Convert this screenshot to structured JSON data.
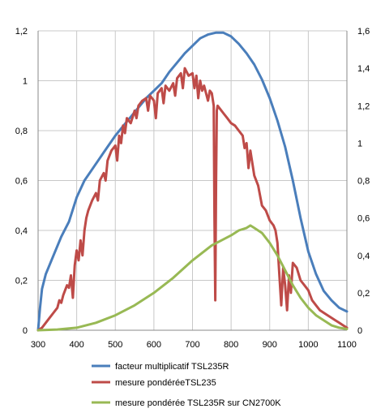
{
  "chart_data": {
    "type": "line",
    "grid": true,
    "legend_placement": "bottom",
    "x_axis": {
      "range": [
        300,
        1100
      ],
      "ticks": [
        300,
        400,
        500,
        600,
        700,
        800,
        900,
        1000,
        1100
      ],
      "tick_labels": [
        "300",
        "400",
        "500",
        "600",
        "700",
        "800",
        "900",
        "1000",
        "1100"
      ]
    },
    "y_axis_left": {
      "range": [
        0,
        1.2
      ],
      "ticks": [
        0,
        0.2,
        0.4,
        0.6,
        0.8,
        1,
        1.2
      ],
      "tick_labels": [
        "0",
        "0,2",
        "0,4",
        "0,6",
        "0,8",
        "1",
        "1,2"
      ]
    },
    "y_axis_right": {
      "range": [
        0,
        1.6
      ],
      "ticks": [
        0,
        0.2,
        0.4,
        0.6,
        0.8,
        1,
        1.2,
        1.4,
        1.6
      ],
      "tick_labels": [
        "0",
        "0,2",
        "0,4",
        "0,6",
        "0,8",
        "1",
        "1,2",
        "1,4",
        "1,6"
      ]
    },
    "series": [
      {
        "name": "facteur multiplicatif TSL235R",
        "color": "#4a7ebb",
        "axis": "right",
        "x": [
          300,
          305,
          310,
          320,
          340,
          360,
          380,
          400,
          420,
          440,
          460,
          480,
          500,
          520,
          540,
          560,
          580,
          600,
          620,
          640,
          660,
          680,
          700,
          720,
          740,
          760,
          780,
          800,
          820,
          840,
          860,
          880,
          900,
          920,
          940,
          960,
          980,
          1000,
          1020,
          1040,
          1060,
          1080,
          1100
        ],
        "y": [
          0,
          0.12,
          0.22,
          0.3,
          0.4,
          0.5,
          0.58,
          0.71,
          0.8,
          0.86,
          0.92,
          0.98,
          1.04,
          1.09,
          1.14,
          1.19,
          1.24,
          1.28,
          1.32,
          1.38,
          1.43,
          1.48,
          1.52,
          1.56,
          1.58,
          1.59,
          1.59,
          1.57,
          1.53,
          1.48,
          1.42,
          1.34,
          1.24,
          1.12,
          0.98,
          0.8,
          0.6,
          0.42,
          0.3,
          0.21,
          0.16,
          0.12,
          0.1
        ]
      },
      {
        "name": "mesure pondéréeTSL235",
        "color": "#be4b48",
        "axis": "left",
        "x": [
          300,
          310,
          320,
          330,
          340,
          350,
          355,
          360,
          365,
          370,
          375,
          380,
          385,
          390,
          395,
          400,
          405,
          410,
          415,
          420,
          425,
          430,
          440,
          450,
          455,
          460,
          470,
          475,
          480,
          490,
          500,
          505,
          510,
          515,
          520,
          525,
          530,
          540,
          550,
          555,
          560,
          570,
          580,
          585,
          590,
          600,
          605,
          610,
          620,
          625,
          630,
          640,
          650,
          655,
          660,
          670,
          675,
          680,
          690,
          700,
          705,
          710,
          715,
          720,
          725,
          730,
          740,
          745,
          750,
          755,
          757,
          759,
          761,
          763,
          765,
          770,
          780,
          790,
          800,
          810,
          820,
          830,
          835,
          840,
          845,
          850,
          860,
          870,
          880,
          890,
          900,
          910,
          915,
          920,
          925,
          930,
          935,
          940,
          945,
          950,
          955,
          960,
          970,
          980,
          990,
          1000,
          1010,
          1020,
          1030,
          1040,
          1050,
          1060,
          1070,
          1080,
          1090,
          1100
        ],
        "y": [
          0,
          0.01,
          0.03,
          0.05,
          0.07,
          0.09,
          0.12,
          0.11,
          0.14,
          0.16,
          0.18,
          0.17,
          0.22,
          0.13,
          0.26,
          0.32,
          0.28,
          0.36,
          0.3,
          0.4,
          0.45,
          0.48,
          0.52,
          0.55,
          0.52,
          0.6,
          0.63,
          0.6,
          0.68,
          0.72,
          0.74,
          0.68,
          0.78,
          0.75,
          0.82,
          0.79,
          0.85,
          0.83,
          0.88,
          0.85,
          0.9,
          0.92,
          0.93,
          0.88,
          0.94,
          0.92,
          0.85,
          0.95,
          0.97,
          0.91,
          0.98,
          0.96,
          0.99,
          0.94,
          1.01,
          1.03,
          0.97,
          1.05,
          1.02,
          1.03,
          0.97,
          1.02,
          0.93,
          1.0,
          0.96,
          0.98,
          0.92,
          0.96,
          0.95,
          0.9,
          0.45,
          0.12,
          0.6,
          0.88,
          0.9,
          0.89,
          0.87,
          0.85,
          0.83,
          0.82,
          0.8,
          0.78,
          0.73,
          0.75,
          0.65,
          0.72,
          0.62,
          0.58,
          0.5,
          0.48,
          0.44,
          0.42,
          0.4,
          0.35,
          0.22,
          0.1,
          0.25,
          0.18,
          0.08,
          0.22,
          0.15,
          0.27,
          0.25,
          0.2,
          0.18,
          0.16,
          0.12,
          0.1,
          0.08,
          0.07,
          0.06,
          0.05,
          0.04,
          0.03,
          0.02,
          0.01
        ]
      },
      {
        "name": "mesure pondérée TSL235R sur CN2700K",
        "color": "#98b954",
        "axis": "left",
        "x": [
          300,
          350,
          400,
          450,
          500,
          550,
          600,
          650,
          700,
          750,
          800,
          820,
          840,
          850,
          860,
          880,
          900,
          920,
          940,
          960,
          980,
          1000,
          1020,
          1040,
          1060,
          1080,
          1100
        ],
        "y": [
          0,
          0.003,
          0.01,
          0.03,
          0.06,
          0.1,
          0.15,
          0.21,
          0.28,
          0.34,
          0.38,
          0.4,
          0.41,
          0.42,
          0.41,
          0.39,
          0.35,
          0.3,
          0.24,
          0.18,
          0.13,
          0.09,
          0.06,
          0.04,
          0.02,
          0.01,
          0.005
        ]
      }
    ]
  }
}
